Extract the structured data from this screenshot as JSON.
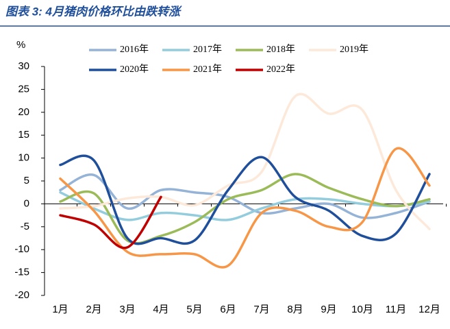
{
  "chart_data": {
    "type": "line",
    "title": "图表 3:  4月猪肉价格环比由跌转涨",
    "y_label": "%",
    "categories": [
      "1月",
      "2月",
      "3月",
      "4月",
      "5月",
      "6月",
      "7月",
      "8月",
      "9月",
      "10月",
      "11月",
      "12月"
    ],
    "ylim": [
      -20,
      30
    ],
    "yticks": [
      -20,
      -15,
      -10,
      -5,
      0,
      5,
      10,
      15,
      20,
      25,
      30
    ],
    "series": [
      {
        "name": "2016年",
        "color": "#95b3d7",
        "values": [
          3,
          6.3,
          -1,
          3,
          2.5,
          1.5,
          -2,
          -1,
          0,
          -3,
          -2,
          0.5
        ]
      },
      {
        "name": "2017年",
        "color": "#93cddd",
        "values": [
          2.5,
          -1,
          -3.5,
          -2,
          -2.5,
          -3.5,
          -1,
          1,
          1,
          0,
          -0.5,
          0.5
        ]
      },
      {
        "name": "2018年",
        "color": "#9bbb59",
        "values": [
          0.5,
          2.3,
          -8,
          -7,
          -4,
          1,
          3,
          6.5,
          3.5,
          1,
          -0.5,
          1
        ]
      },
      {
        "name": "2019年",
        "color": "#fde9d9",
        "values": [
          -1,
          -0.5,
          1.2,
          1.5,
          -0.3,
          4,
          7,
          23.5,
          19.7,
          20.5,
          3,
          -5.5
        ]
      },
      {
        "name": "2020年",
        "color": "#1f4e9a",
        "values": [
          8.5,
          9.5,
          -7.5,
          -7.5,
          -8,
          3,
          10.2,
          1.5,
          -1.5,
          -7,
          -6.5,
          6.5
        ]
      },
      {
        "name": "2021年",
        "color": "#f79646",
        "values": [
          5.5,
          -1.5,
          -10.5,
          -11,
          -11,
          -13.5,
          -2,
          -1.5,
          -5,
          -4,
          12,
          4
        ]
      },
      {
        "name": "2022年",
        "color": "#c00000",
        "values": [
          -2.5,
          -4.5,
          -9.5,
          1.5,
          null,
          null,
          null,
          null,
          null,
          null,
          null,
          null
        ]
      }
    ]
  }
}
